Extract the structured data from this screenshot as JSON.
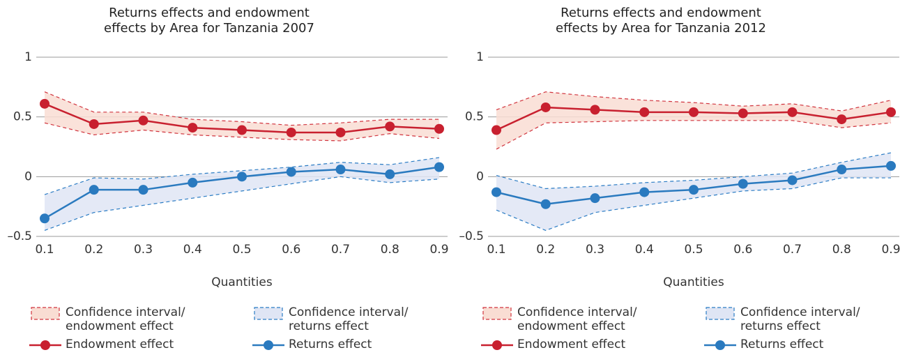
{
  "chart_data": [
    {
      "type": "line",
      "title": "Returns effects and endowment effects by Area for Tanzania 2007",
      "x_label": "Quantities",
      "x": [
        0.1,
        0.2,
        0.3,
        0.4,
        0.5,
        0.6,
        0.7,
        0.8,
        0.9
      ],
      "xlim": [
        0.1,
        0.9
      ],
      "xticks": [
        0.1,
        0.2,
        0.3,
        0.4,
        0.5,
        0.6,
        0.7,
        0.8,
        0.9
      ],
      "ylim": [
        -0.5,
        1
      ],
      "yticks": [
        {
          "value": -0.5,
          "label": "–0.5"
        },
        0,
        0.5,
        1
      ],
      "grid": true,
      "series": [
        {
          "name": "Confidence interval/ endowment effect",
          "kind": "band",
          "color": "#f9ddd3",
          "edge_color": "#d1343e",
          "upper": [
            0.71,
            0.54,
            0.54,
            0.48,
            0.46,
            0.43,
            0.45,
            0.48,
            0.48
          ],
          "lower": [
            0.45,
            0.35,
            0.39,
            0.35,
            0.33,
            0.31,
            0.3,
            0.36,
            0.32
          ]
        },
        {
          "name": "Confidence interval/ returns effect",
          "kind": "band",
          "color": "#dfe5f4",
          "edge_color": "#2b7cc4",
          "upper": [
            -0.15,
            -0.01,
            -0.02,
            0.02,
            0.05,
            0.08,
            0.12,
            0.1,
            0.16
          ],
          "lower": [
            -0.45,
            -0.3,
            -0.24,
            -0.18,
            -0.12,
            -0.06,
            0.0,
            -0.05,
            -0.02
          ]
        },
        {
          "name": "Endowment effect",
          "kind": "line",
          "color": "#c8202f",
          "values": [
            0.61,
            0.44,
            0.47,
            0.41,
            0.39,
            0.37,
            0.37,
            0.42,
            0.4
          ]
        },
        {
          "name": "Returns effect",
          "kind": "line",
          "color": "#2a7abf",
          "values": [
            -0.35,
            -0.11,
            -0.11,
            -0.05,
            0.0,
            0.04,
            0.06,
            0.02,
            0.08
          ]
        }
      ]
    },
    {
      "type": "line",
      "title": "Returns effects and endowment effects by Area for Tanzania 2012",
      "x_label": "Quantities",
      "x": [
        0.1,
        0.2,
        0.3,
        0.4,
        0.5,
        0.6,
        0.7,
        0.8,
        0.9
      ],
      "xlim": [
        0.1,
        0.9
      ],
      "xticks": [
        0.1,
        0.2,
        0.3,
        0.4,
        0.5,
        0.6,
        0.7,
        0.8,
        0.9
      ],
      "ylim": [
        -0.5,
        1
      ],
      "yticks": [
        {
          "value": -0.5,
          "label": "–0.5"
        },
        0,
        0.5,
        1
      ],
      "grid": true,
      "series": [
        {
          "name": "Confidence interval/ endowment effect",
          "kind": "band",
          "color": "#f9ddd3",
          "edge_color": "#d1343e",
          "upper": [
            0.56,
            0.71,
            0.67,
            0.64,
            0.62,
            0.59,
            0.61,
            0.55,
            0.64
          ],
          "lower": [
            0.23,
            0.45,
            0.46,
            0.47,
            0.47,
            0.47,
            0.47,
            0.41,
            0.45
          ]
        },
        {
          "name": "Confidence interval/ returns effect",
          "kind": "band",
          "color": "#dfe5f4",
          "edge_color": "#2b7cc4",
          "upper": [
            0.01,
            -0.1,
            -0.08,
            -0.05,
            -0.03,
            0.0,
            0.03,
            0.12,
            0.2
          ],
          "lower": [
            -0.28,
            -0.45,
            -0.3,
            -0.24,
            -0.18,
            -0.12,
            -0.1,
            -0.01,
            -0.01
          ]
        },
        {
          "name": "Endowment effect",
          "kind": "line",
          "color": "#c8202f",
          "values": [
            0.39,
            0.58,
            0.56,
            0.54,
            0.54,
            0.53,
            0.54,
            0.48,
            0.54
          ]
        },
        {
          "name": "Returns effect",
          "kind": "line",
          "color": "#2a7abf",
          "values": [
            -0.13,
            -0.23,
            -0.18,
            -0.13,
            -0.11,
            -0.06,
            -0.03,
            0.06,
            0.09
          ]
        }
      ]
    }
  ]
}
